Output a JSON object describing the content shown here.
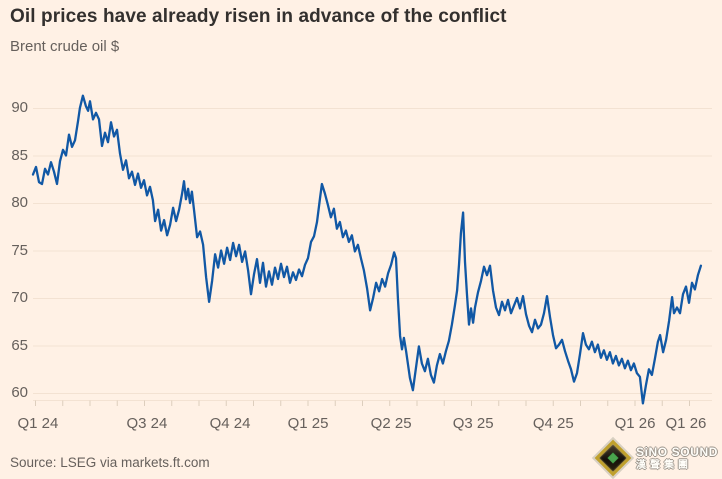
{
  "colors": {
    "background": "#fff1e5",
    "line": "#1158a5",
    "gridline": "#f3e2d2",
    "axis_tick": "#ddcebd",
    "title_text": "#33302e",
    "muted_text": "#66605c"
  },
  "logo": {
    "brand": "SiNO SOUND",
    "brand_cn": "漢聲集團"
  },
  "chart_data": {
    "type": "line",
    "title": "Oil prices have already risen in advance of the conflict",
    "subtitle": "Brent crude oil $",
    "source": "Source: LSEG via markets.ft.com",
    "legend": "none",
    "grid": "horizontal",
    "y_axis": {
      "min": 60,
      "max": 90,
      "ticks": [
        90,
        85,
        80,
        75,
        70,
        65,
        60
      ]
    },
    "x_axis": {
      "unit": "months since Jan 2024",
      "tick_interval_months": 1,
      "tick_t_min": 2,
      "tick_t_max": 26,
      "labels": [
        {
          "label": "Q1 24",
          "t": 2.09
        },
        {
          "label": "Q3 24",
          "t": 6.09
        },
        {
          "label": "Q4 24",
          "t": 9.14
        },
        {
          "label": "Q1 25",
          "t": 12.0
        },
        {
          "label": "Q2 25",
          "t": 15.05
        },
        {
          "label": "Q3 25",
          "t": 18.06
        },
        {
          "label": "Q4 25",
          "t": 21.0
        },
        {
          "label": "Q1 26",
          "t": 24.0
        },
        {
          "label": "Q1 26",
          "t": 25.87
        }
      ]
    },
    "series": [
      {
        "name": "Brent crude oil $",
        "color": "#1158a5",
        "points": [
          [
            1.91,
            83.0
          ],
          [
            2.02,
            83.8
          ],
          [
            2.13,
            82.2
          ],
          [
            2.24,
            82.0
          ],
          [
            2.35,
            83.6
          ],
          [
            2.46,
            83.0
          ],
          [
            2.57,
            84.3
          ],
          [
            2.68,
            83.3
          ],
          [
            2.79,
            82.0
          ],
          [
            2.9,
            84.4
          ],
          [
            3.01,
            85.6
          ],
          [
            3.12,
            85.0
          ],
          [
            3.23,
            87.2
          ],
          [
            3.34,
            85.9
          ],
          [
            3.45,
            86.6
          ],
          [
            3.56,
            88.6
          ],
          [
            3.63,
            90.0
          ],
          [
            3.74,
            91.3
          ],
          [
            3.85,
            90.2
          ],
          [
            3.93,
            89.7
          ],
          [
            4.0,
            90.7
          ],
          [
            4.11,
            88.8
          ],
          [
            4.22,
            89.5
          ],
          [
            4.33,
            88.8
          ],
          [
            4.44,
            86.0
          ],
          [
            4.55,
            87.4
          ],
          [
            4.66,
            86.4
          ],
          [
            4.77,
            88.5
          ],
          [
            4.88,
            87.0
          ],
          [
            4.99,
            87.7
          ],
          [
            5.1,
            85.2
          ],
          [
            5.21,
            83.5
          ],
          [
            5.32,
            84.5
          ],
          [
            5.43,
            82.6
          ],
          [
            5.54,
            83.3
          ],
          [
            5.65,
            81.9
          ],
          [
            5.76,
            83.1
          ],
          [
            5.87,
            81.6
          ],
          [
            5.98,
            82.4
          ],
          [
            6.09,
            80.8
          ],
          [
            6.2,
            81.7
          ],
          [
            6.31,
            80.3
          ],
          [
            6.39,
            78.1
          ],
          [
            6.5,
            79.3
          ],
          [
            6.61,
            77.1
          ],
          [
            6.72,
            78.2
          ],
          [
            6.83,
            76.6
          ],
          [
            6.94,
            77.7
          ],
          [
            7.05,
            79.5
          ],
          [
            7.16,
            78.1
          ],
          [
            7.27,
            79.3
          ],
          [
            7.38,
            81.0
          ],
          [
            7.45,
            82.3
          ],
          [
            7.52,
            80.4
          ],
          [
            7.6,
            81.5
          ],
          [
            7.67,
            80.0
          ],
          [
            7.74,
            81.2
          ],
          [
            7.82,
            79.2
          ],
          [
            7.93,
            76.4
          ],
          [
            8.04,
            77.0
          ],
          [
            8.15,
            75.6
          ],
          [
            8.26,
            72.2
          ],
          [
            8.37,
            69.6
          ],
          [
            8.48,
            71.8
          ],
          [
            8.59,
            74.6
          ],
          [
            8.7,
            73.2
          ],
          [
            8.81,
            75.0
          ],
          [
            8.92,
            73.6
          ],
          [
            9.03,
            75.3
          ],
          [
            9.14,
            74.0
          ],
          [
            9.25,
            75.8
          ],
          [
            9.36,
            74.4
          ],
          [
            9.47,
            75.6
          ],
          [
            9.58,
            73.8
          ],
          [
            9.69,
            74.9
          ],
          [
            9.8,
            72.9
          ],
          [
            9.91,
            70.4
          ],
          [
            10.02,
            72.5
          ],
          [
            10.13,
            74.1
          ],
          [
            10.24,
            71.6
          ],
          [
            10.35,
            73.7
          ],
          [
            10.46,
            71.2
          ],
          [
            10.57,
            72.8
          ],
          [
            10.68,
            71.4
          ],
          [
            10.79,
            73.2
          ],
          [
            10.9,
            72.0
          ],
          [
            11.01,
            73.6
          ],
          [
            11.12,
            72.2
          ],
          [
            11.23,
            73.3
          ],
          [
            11.34,
            71.6
          ],
          [
            11.45,
            72.7
          ],
          [
            11.56,
            71.9
          ],
          [
            11.67,
            73.0
          ],
          [
            11.78,
            72.3
          ],
          [
            11.89,
            73.5
          ],
          [
            12.0,
            74.2
          ],
          [
            12.11,
            75.9
          ],
          [
            12.22,
            76.5
          ],
          [
            12.33,
            78.0
          ],
          [
            12.44,
            80.5
          ],
          [
            12.51,
            82.0
          ],
          [
            12.62,
            81.0
          ],
          [
            12.73,
            79.8
          ],
          [
            12.84,
            78.5
          ],
          [
            12.95,
            79.4
          ],
          [
            13.06,
            77.3
          ],
          [
            13.17,
            78.0
          ],
          [
            13.28,
            76.4
          ],
          [
            13.39,
            77.1
          ],
          [
            13.5,
            75.9
          ],
          [
            13.61,
            76.6
          ],
          [
            13.72,
            74.9
          ],
          [
            13.83,
            75.6
          ],
          [
            13.94,
            74.2
          ],
          [
            14.05,
            72.9
          ],
          [
            14.17,
            71.0
          ],
          [
            14.28,
            68.7
          ],
          [
            14.39,
            70.0
          ],
          [
            14.5,
            71.6
          ],
          [
            14.61,
            70.7
          ],
          [
            14.72,
            72.0
          ],
          [
            14.83,
            71.2
          ],
          [
            14.94,
            72.6
          ],
          [
            15.05,
            73.5
          ],
          [
            15.16,
            74.8
          ],
          [
            15.23,
            74.2
          ],
          [
            15.3,
            70.0
          ],
          [
            15.38,
            66.0
          ],
          [
            15.45,
            64.6
          ],
          [
            15.52,
            65.8
          ],
          [
            15.6,
            64.4
          ],
          [
            15.67,
            63.0
          ],
          [
            15.74,
            61.6
          ],
          [
            15.85,
            60.3
          ],
          [
            15.96,
            62.6
          ],
          [
            16.07,
            64.9
          ],
          [
            16.18,
            63.1
          ],
          [
            16.29,
            62.3
          ],
          [
            16.4,
            63.6
          ],
          [
            16.51,
            61.9
          ],
          [
            16.62,
            61.1
          ],
          [
            16.73,
            62.9
          ],
          [
            16.84,
            64.1
          ],
          [
            16.95,
            63.1
          ],
          [
            17.06,
            64.4
          ],
          [
            17.17,
            65.5
          ],
          [
            17.28,
            67.2
          ],
          [
            17.39,
            69.2
          ],
          [
            17.47,
            70.8
          ],
          [
            17.54,
            73.5
          ],
          [
            17.61,
            76.8
          ],
          [
            17.69,
            79.0
          ],
          [
            17.76,
            73.8
          ],
          [
            17.83,
            70.5
          ],
          [
            17.91,
            67.2
          ],
          [
            17.98,
            68.9
          ],
          [
            18.06,
            67.4
          ],
          [
            18.13,
            69.0
          ],
          [
            18.24,
            70.6
          ],
          [
            18.35,
            71.8
          ],
          [
            18.46,
            73.3
          ],
          [
            18.57,
            72.4
          ],
          [
            18.68,
            73.4
          ],
          [
            18.79,
            70.8
          ],
          [
            18.9,
            69.0
          ],
          [
            19.01,
            68.2
          ],
          [
            19.12,
            69.6
          ],
          [
            19.23,
            68.7
          ],
          [
            19.34,
            69.8
          ],
          [
            19.45,
            68.4
          ],
          [
            19.56,
            69.2
          ],
          [
            19.67,
            70.0
          ],
          [
            19.78,
            68.9
          ],
          [
            19.89,
            70.2
          ],
          [
            20.0,
            68.3
          ],
          [
            20.11,
            67.1
          ],
          [
            20.22,
            66.4
          ],
          [
            20.33,
            67.7
          ],
          [
            20.44,
            66.8
          ],
          [
            20.55,
            67.2
          ],
          [
            20.66,
            68.4
          ],
          [
            20.77,
            70.2
          ],
          [
            20.88,
            68.0
          ],
          [
            20.99,
            66.1
          ],
          [
            21.1,
            64.7
          ],
          [
            21.21,
            65.1
          ],
          [
            21.32,
            65.6
          ],
          [
            21.43,
            64.4
          ],
          [
            21.54,
            63.4
          ],
          [
            21.65,
            62.5
          ],
          [
            21.76,
            61.2
          ],
          [
            21.87,
            62.1
          ],
          [
            21.98,
            64.1
          ],
          [
            22.09,
            66.3
          ],
          [
            22.2,
            65.1
          ],
          [
            22.31,
            64.6
          ],
          [
            22.42,
            65.4
          ],
          [
            22.53,
            64.3
          ],
          [
            22.64,
            65.1
          ],
          [
            22.75,
            63.7
          ],
          [
            22.86,
            64.5
          ],
          [
            22.97,
            63.5
          ],
          [
            23.08,
            64.3
          ],
          [
            23.19,
            63.1
          ],
          [
            23.3,
            63.9
          ],
          [
            23.41,
            62.9
          ],
          [
            23.52,
            63.6
          ],
          [
            23.63,
            62.6
          ],
          [
            23.74,
            63.4
          ],
          [
            23.85,
            62.4
          ],
          [
            23.96,
            63.1
          ],
          [
            24.07,
            62.1
          ],
          [
            24.18,
            61.7
          ],
          [
            24.29,
            58.9
          ],
          [
            24.4,
            60.8
          ],
          [
            24.51,
            62.5
          ],
          [
            24.62,
            61.9
          ],
          [
            24.73,
            63.6
          ],
          [
            24.84,
            65.4
          ],
          [
            24.92,
            66.1
          ],
          [
            25.03,
            64.3
          ],
          [
            25.14,
            65.6
          ],
          [
            25.25,
            67.6
          ],
          [
            25.36,
            70.1
          ],
          [
            25.43,
            68.4
          ],
          [
            25.54,
            69.0
          ],
          [
            25.65,
            68.4
          ],
          [
            25.76,
            70.4
          ],
          [
            25.87,
            71.2
          ],
          [
            25.98,
            69.5
          ],
          [
            26.09,
            71.6
          ],
          [
            26.2,
            70.9
          ],
          [
            26.31,
            72.4
          ],
          [
            26.42,
            73.4
          ]
        ]
      }
    ]
  }
}
